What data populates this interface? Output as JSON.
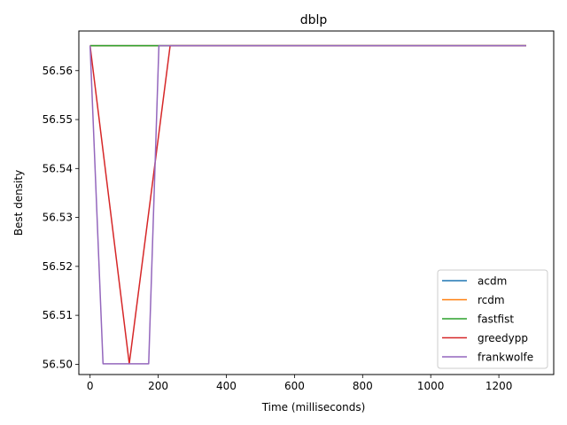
{
  "chart_data": {
    "type": "line",
    "title": "dblp",
    "xlabel": "Time (milliseconds)",
    "ylabel": "Best density",
    "xlim": [
      -33,
      1361
    ],
    "ylim": [
      56.4979,
      56.5681
    ],
    "xticks": [
      0,
      200,
      400,
      600,
      800,
      1000,
      1200
    ],
    "yticks": [
      56.5,
      56.51,
      56.52,
      56.53,
      56.54,
      56.55,
      56.56
    ],
    "yticks_labels": [
      "56.50",
      "56.51",
      "56.52",
      "56.53",
      "56.54",
      "56.55",
      "56.56"
    ],
    "xticks_labels": [
      "0",
      "200",
      "400",
      "600",
      "800",
      "1000",
      "1200"
    ],
    "legend_position": "lower-right",
    "grid": false,
    "series": [
      {
        "name": "acdm",
        "color": "#1f77b4",
        "x": [
          0,
          1280
        ],
        "y": [
          56.5651,
          56.5651
        ]
      },
      {
        "name": "rcdm",
        "color": "#ff7f0e",
        "x": [
          0,
          1280
        ],
        "y": [
          56.5651,
          56.5651
        ]
      },
      {
        "name": "fastfist",
        "color": "#2ca02c",
        "x": [
          0,
          1280
        ],
        "y": [
          56.5651,
          56.5651
        ]
      },
      {
        "name": "greedypp",
        "color": "#d62728",
        "x": [
          0,
          115,
          235,
          1280
        ],
        "y": [
          56.5651,
          56.5001,
          56.5651,
          56.5651
        ]
      },
      {
        "name": "frankwolfe",
        "color": "#9467bd",
        "x": [
          0,
          38,
          172,
          202,
          1280
        ],
        "y": [
          56.5651,
          56.5001,
          56.5001,
          56.5651,
          56.5651
        ]
      }
    ]
  }
}
